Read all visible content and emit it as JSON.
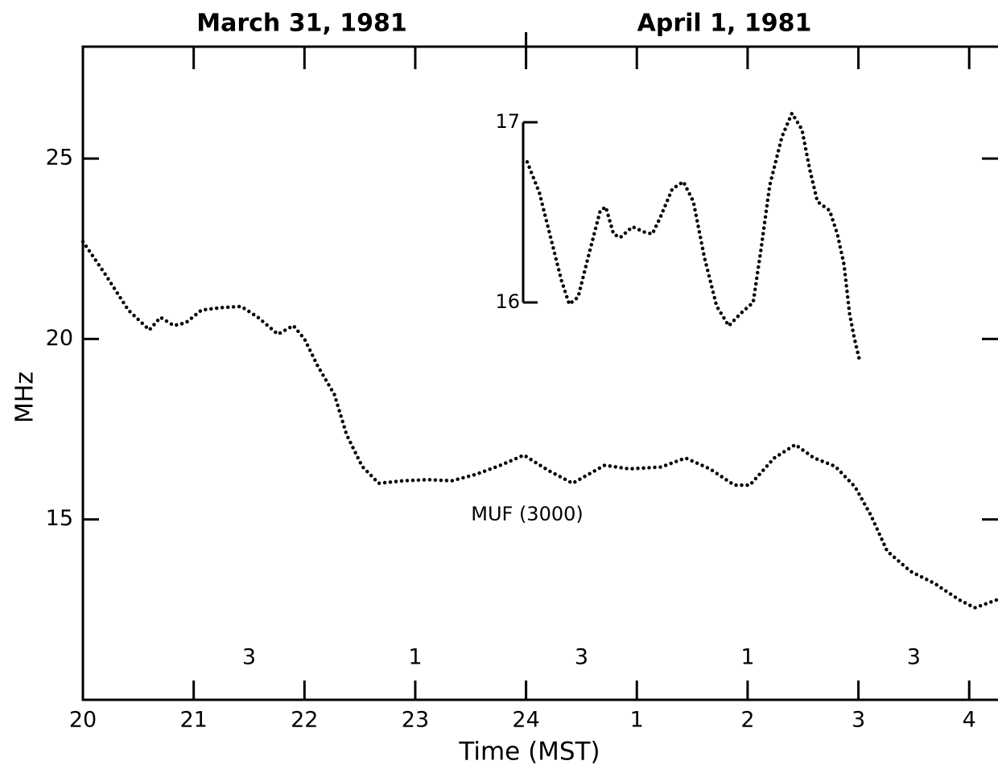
{
  "chart_data": [
    {
      "type": "line",
      "dates": [
        "March 31, 1981",
        "April 1, 1981"
      ],
      "xlabel": "Time (MST)",
      "ylabel": "MHz",
      "xlim": [
        20,
        28.26
      ],
      "ylim": [
        10,
        28.1
      ],
      "xticks": [
        20,
        21,
        22,
        23,
        24,
        {
          "value": 25,
          "label": "1"
        },
        {
          "value": 26,
          "label": "2"
        },
        {
          "value": 27,
          "label": "3"
        },
        {
          "value": 28,
          "label": "4"
        }
      ],
      "yticks": [
        15,
        20,
        25
      ],
      "annotations": [
        {
          "text": "3",
          "x": 21.5
        },
        {
          "text": "1",
          "x": 23
        },
        {
          "text": "3",
          "x": 24.5
        },
        {
          "text": "1",
          "x": 26
        },
        {
          "text": "3",
          "x": 27.5
        }
      ],
      "series": [
        {
          "name": "MUF (3000)",
          "color": "#000000",
          "x": [
            20.0,
            20.2,
            20.41,
            20.6,
            20.7,
            20.82,
            20.93,
            21.07,
            21.25,
            21.43,
            21.58,
            21.76,
            21.9,
            22.0,
            22.12,
            22.27,
            22.38,
            22.52,
            22.67,
            22.89,
            23.11,
            23.33,
            23.55,
            23.77,
            23.98,
            24.2,
            24.42,
            24.71,
            24.93,
            25.22,
            25.44,
            25.66,
            25.88,
            26.02,
            26.24,
            26.43,
            26.6,
            26.79,
            26.97,
            27.11,
            27.26,
            27.47,
            27.69,
            27.91,
            28.05,
            28.25
          ],
          "values": [
            22.7,
            21.8,
            20.8,
            20.25,
            20.6,
            20.37,
            20.45,
            20.8,
            20.87,
            20.9,
            20.6,
            20.13,
            20.37,
            20.0,
            19.25,
            18.46,
            17.35,
            16.47,
            16.0,
            16.07,
            16.1,
            16.07,
            16.25,
            16.5,
            16.78,
            16.36,
            16.0,
            16.5,
            16.4,
            16.45,
            16.7,
            16.4,
            15.95,
            15.95,
            16.7,
            17.07,
            16.7,
            16.47,
            15.9,
            15.13,
            14.12,
            13.56,
            13.22,
            12.77,
            12.55,
            12.77
          ]
        }
      ]
    },
    {
      "type": "line",
      "xlim": [
        20,
        28.26
      ],
      "ylim": [
        15.6,
        17.1
      ],
      "yticks": [
        16,
        17
      ],
      "series": [
        {
          "color": "#000000",
          "x": [
            24.01,
            24.12,
            24.23,
            24.32,
            24.39,
            24.47,
            24.56,
            24.67,
            24.72,
            24.79,
            24.85,
            24.96,
            25.07,
            25.14,
            25.21,
            25.32,
            25.42,
            25.51,
            25.61,
            25.72,
            25.83,
            25.94,
            26.05,
            26.12,
            26.2,
            26.31,
            26.4,
            26.49,
            26.56,
            26.63,
            26.74,
            26.81,
            26.87,
            26.92,
            26.96,
            27.01
          ],
          "values": [
            16.78,
            16.61,
            16.34,
            16.12,
            15.99,
            16.03,
            16.25,
            16.51,
            16.53,
            16.38,
            16.36,
            16.42,
            16.39,
            16.38,
            16.47,
            16.63,
            16.67,
            16.56,
            16.25,
            15.98,
            15.87,
            15.94,
            16.0,
            16.29,
            16.65,
            16.92,
            17.05,
            16.96,
            16.74,
            16.56,
            16.51,
            16.38,
            16.21,
            15.94,
            15.81,
            15.68
          ]
        }
      ]
    }
  ]
}
